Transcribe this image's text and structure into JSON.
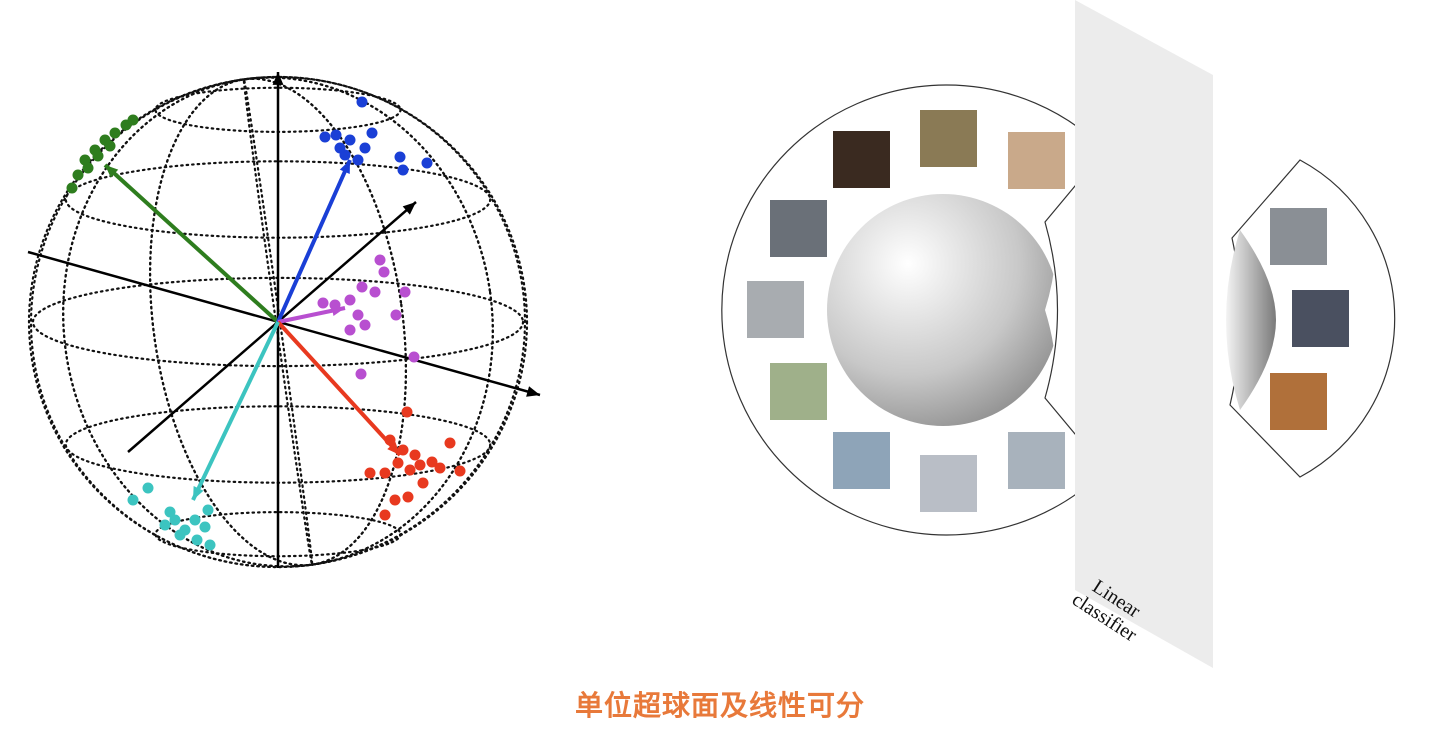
{
  "caption": "单位超球面及线性可分",
  "classifier_label": {
    "line1": "Linear",
    "line2": "classifier"
  },
  "colors": {
    "caption": "#e8793a",
    "cluster_blue": "#1a3fd6",
    "cluster_green": "#2e7d1e",
    "cluster_purple": "#b84fd0",
    "cluster_red": "#e8391f",
    "cluster_cyan": "#3cc4c0",
    "plane": "#ececec"
  },
  "images": {
    "class_dog": [
      "dog-photo",
      "dog-photo",
      "dog-photo"
    ],
    "class_car": [
      "car-photo",
      "car-photo",
      "car-photo"
    ],
    "class_plane": [
      "airplane-photo",
      "airplane-photo",
      "airplane-photo"
    ],
    "class_cat": [
      "cat-photo",
      "cat-photo",
      "cat-photo"
    ]
  }
}
